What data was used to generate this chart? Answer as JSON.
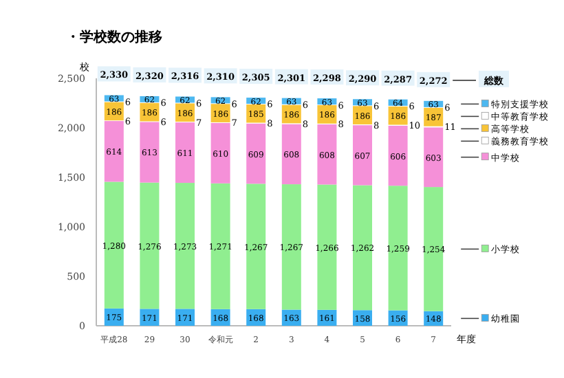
{
  "chart_data": {
    "type": "bar",
    "stacked": true,
    "title": "・学校数の推移",
    "ylabel": "校",
    "xlabel": "年度",
    "categories": [
      "平成28",
      "29",
      "30",
      "令和元",
      "2",
      "3",
      "4",
      "5",
      "6",
      "7"
    ],
    "series": [
      {
        "name": "幼稚園",
        "color": "#3aaef0",
        "values": [
          175,
          171,
          171,
          168,
          168,
          163,
          161,
          158,
          156,
          148
        ]
      },
      {
        "name": "小学校",
        "color": "#90ee90",
        "values": [
          1280,
          1276,
          1273,
          1271,
          1267,
          1267,
          1266,
          1262,
          1259,
          1254
        ],
        "value_labels": [
          "1,280",
          "1,276",
          "1,273",
          "1,271",
          "1,267",
          "1,267",
          "1,266",
          "1,262",
          "1,259",
          "1,254"
        ]
      },
      {
        "name": "中学校",
        "color": "#f590d8",
        "values": [
          614,
          613,
          611,
          610,
          609,
          608,
          608,
          607,
          606,
          603
        ]
      },
      {
        "name": "義務教育学校",
        "color": "#ffffff",
        "values": [
          6,
          6,
          7,
          7,
          8,
          8,
          8,
          8,
          10,
          11
        ]
      },
      {
        "name": "高等学校",
        "color": "#f8c437",
        "values": [
          186,
          186,
          186,
          186,
          185,
          186,
          186,
          186,
          186,
          187
        ]
      },
      {
        "name": "中等教育学校",
        "color": "#ffffff",
        "values": [
          6,
          6,
          6,
          6,
          6,
          6,
          6,
          6,
          6,
          6
        ]
      },
      {
        "name": "特別支援学校",
        "color": "#4db8f0",
        "values": [
          63,
          62,
          62,
          62,
          62,
          63,
          63,
          63,
          64,
          63
        ]
      }
    ],
    "totals": [
      "2,330",
      "2,320",
      "2,316",
      "2,310",
      "2,305",
      "2,301",
      "2,298",
      "2,290",
      "2,287",
      "2,272"
    ],
    "annotations": [
      "総数"
    ],
    "ylim": [
      0,
      2500
    ],
    "yticks": [
      {
        "value": 0,
        "label": "0"
      },
      {
        "value": 500,
        "label": "500"
      },
      {
        "value": 1000,
        "label": "1,000"
      },
      {
        "value": 1500,
        "label": "1,500"
      },
      {
        "value": 2000,
        "label": "2,000"
      },
      {
        "value": 2500,
        "label": "2,500"
      }
    ],
    "data_labels": true,
    "legend": "right",
    "grid": false
  }
}
